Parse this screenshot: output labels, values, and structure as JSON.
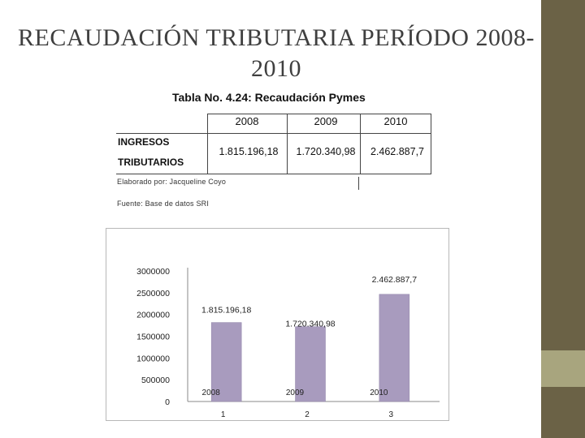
{
  "slide": {
    "title_line1": "RECAUDACIÓN TRIBUTARIA PERÍODO 2008-",
    "title_line2": "2010"
  },
  "table": {
    "caption": "Tabla No. 4.24: Recaudación Pymes",
    "years": [
      "2008",
      "2009",
      "2010"
    ],
    "row_label_1": "INGRESOS",
    "row_label_2": "TRIBUTARIOS",
    "values": [
      "1.815.196,18",
      "1.720.340,98",
      "2.462.887,7"
    ],
    "note_1": "Elaborado por: Jacqueline Coyo",
    "note_2": "Fuente: Base de datos SRI"
  },
  "colors": {
    "sidebar": "#6b6246",
    "sidebar_accent": "#a8a57e",
    "bar_fill": "#a89bbe",
    "bar_stroke": "#8f83a8"
  },
  "chart_data": {
    "type": "bar",
    "categories": [
      "1",
      "2",
      "3"
    ],
    "values": [
      1815196.18,
      1720340.98,
      2462887.7
    ],
    "data_labels": [
      "1.815.196,18",
      "1.720.340,98",
      "2.462.887,7"
    ],
    "year_labels": [
      "2008",
      "2009",
      "2010"
    ],
    "y_ticks": [
      "0",
      "500000",
      "1000000",
      "1500000",
      "2000000",
      "2500000",
      "3000000"
    ],
    "ylim": [
      0,
      3000000
    ],
    "grid": false,
    "legend": "none"
  }
}
